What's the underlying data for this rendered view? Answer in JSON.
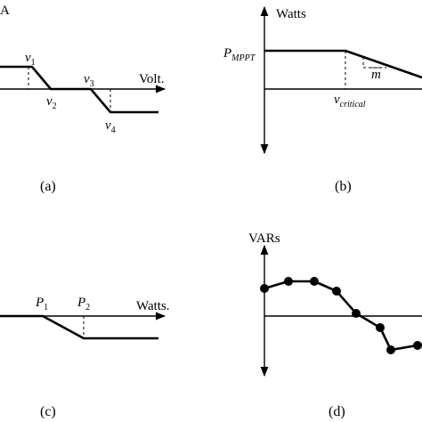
{
  "panels": {
    "a": {
      "caption": "(a)",
      "top_left_fragment": "A",
      "axis_label": "Volt.",
      "points": [
        {
          "base": "v",
          "sub": "1"
        },
        {
          "base": "v",
          "sub": "2"
        },
        {
          "base": "v",
          "sub": "3"
        },
        {
          "base": "v",
          "sub": "4"
        }
      ]
    },
    "b": {
      "caption": "(b)",
      "axis_label": "Watts",
      "y_point": {
        "base": "P",
        "sub": "MPPT"
      },
      "x_point": {
        "base": "v",
        "sub": "critical"
      },
      "slope_label": "m"
    },
    "c": {
      "caption": "(c)",
      "axis_label": "Watts.",
      "points": [
        {
          "base": "P",
          "sub": "1"
        },
        {
          "base": "P",
          "sub": "2"
        }
      ]
    },
    "d": {
      "caption": "(d)",
      "axis_label": "VARs",
      "markers": 8
    }
  }
}
